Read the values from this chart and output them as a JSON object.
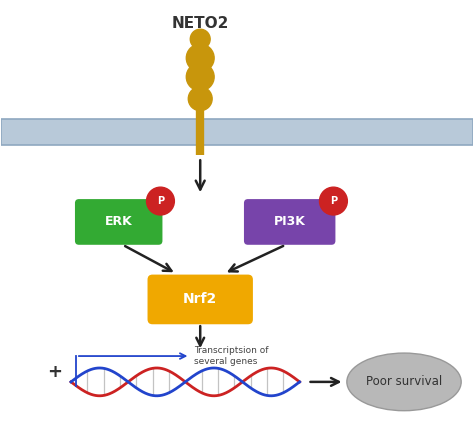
{
  "title": "NETO2",
  "bg_color": "#ffffff",
  "membrane_color": "#b8c9d9",
  "membrane_edge_color": "#8fa8c0",
  "receptor_color": "#c8960c",
  "erk_color": "#33aa33",
  "erk_label": "ERK",
  "pi3k_color": "#7744aa",
  "pi3k_label": "PI3K",
  "p_color": "#cc2222",
  "p_label": "P",
  "nrf2_color": "#f0a800",
  "nrf2_label": "Nrf2",
  "dna_blue": "#2244cc",
  "dna_red": "#cc2222",
  "dna_rung": "#888888",
  "survival_color": "#b8b8b8",
  "survival_edge": "#999999",
  "survival_label": "Poor survival",
  "transcription_label": "Transcriptsion of\nseveral genes",
  "arrow_color": "#222222",
  "plus_color": "#333333",
  "title_fontsize": 11,
  "label_fontsize": 9,
  "p_fontsize": 7
}
